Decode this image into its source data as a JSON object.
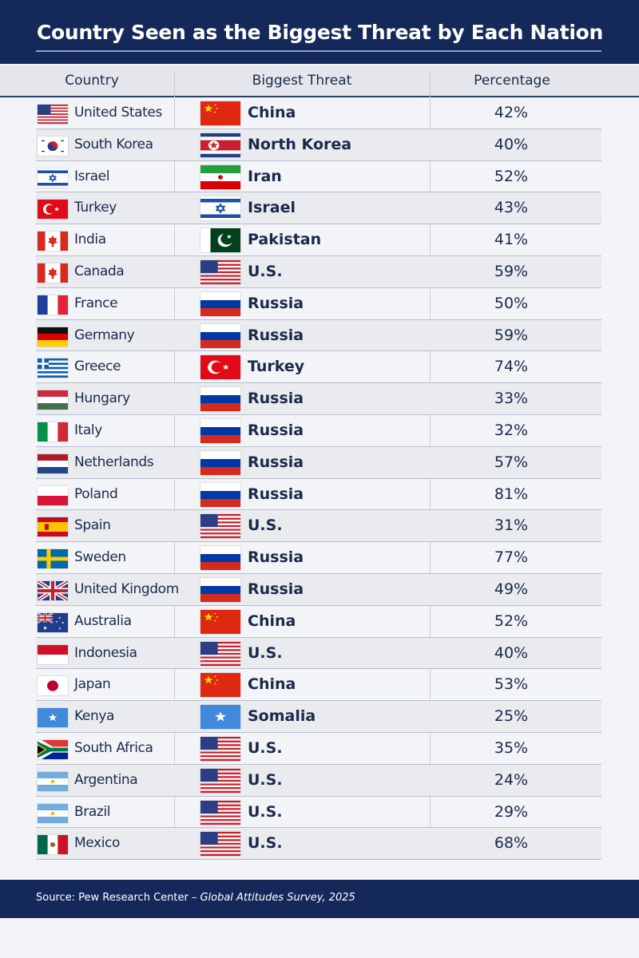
{
  "header": {
    "title": "Country Seen as the Biggest Threat by Each Nation"
  },
  "table": {
    "columns": [
      "Country",
      "Biggest Threat",
      "Percentage"
    ],
    "rows": [
      [
        "United States",
        "China",
        "42%"
      ],
      [
        "South Korea",
        "North Korea",
        "40%"
      ],
      [
        "Israel",
        "Iran",
        "52%"
      ],
      [
        "Turkey",
        "Israel",
        "43%"
      ],
      [
        "India",
        "Pakistan",
        "41%"
      ],
      [
        "Canada",
        "U.S.",
        "59%"
      ],
      [
        "France",
        "Russia",
        "50%"
      ],
      [
        "Germany",
        "Russia",
        "59%"
      ],
      [
        "Greece",
        "Turkey",
        "74%"
      ],
      [
        "Hungary",
        "Russia",
        "33%"
      ],
      [
        "Italy",
        "Russia",
        "32%"
      ],
      [
        "Netherlands",
        "Russia",
        "57%"
      ],
      [
        "Poland",
        "Russia",
        "81%"
      ],
      [
        "Spain",
        "U.S.",
        "31%"
      ],
      [
        "Sweden",
        "Russia",
        "77%"
      ],
      [
        "United Kingdom",
        "Russia",
        "49%"
      ],
      [
        "Australia",
        "China",
        "52%"
      ],
      [
        "Indonesia",
        "U.S.",
        "40%"
      ],
      [
        "Japan",
        "China",
        "53%"
      ],
      [
        "Kenya",
        "Somalia",
        "25%"
      ],
      [
        "South Africa",
        "U.S.",
        "35%"
      ],
      [
        "Argentina",
        "U.S.",
        "24%"
      ],
      [
        "Brazil",
        "U.S.",
        "29%"
      ],
      [
        "Mexico",
        "U.S.",
        "68%"
      ]
    ]
  },
  "footer": {
    "source": "Source: Pew Research Center –",
    "survey": "Global Attitudes Survey, 2025"
  }
}
